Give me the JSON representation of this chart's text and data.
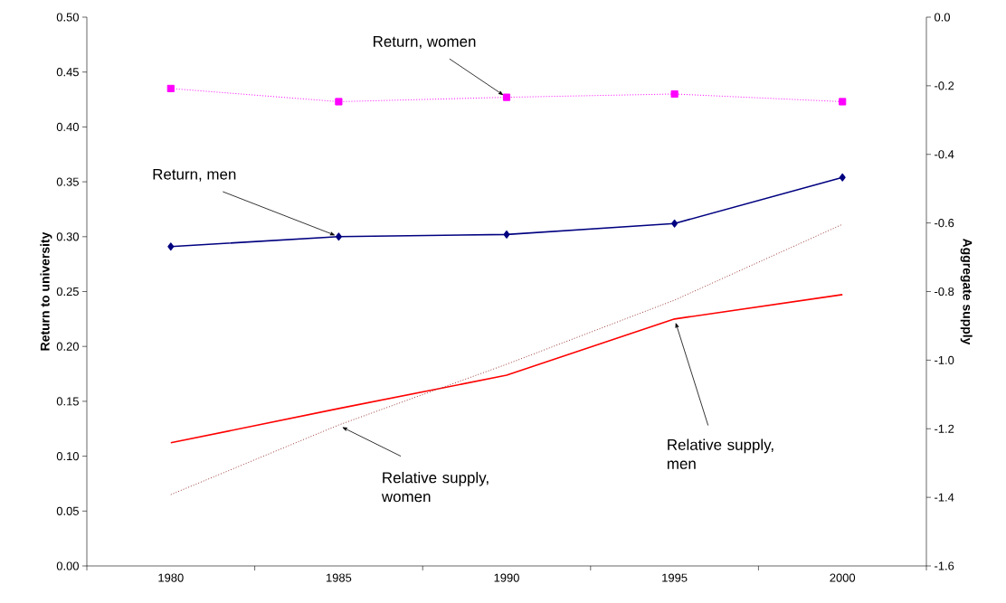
{
  "chart_data": {
    "type": "line",
    "categories": [
      "1980",
      "1985",
      "1990",
      "1995",
      "2000"
    ],
    "ylabel": "Return to university",
    "y2label": "Aggregate supply",
    "ylim": [
      0,
      0.5
    ],
    "yticks": [
      {
        "value": 0,
        "label": "0.00"
      },
      {
        "value": 0.05,
        "label": "0.05"
      },
      {
        "value": 0.1,
        "label": "0.10"
      },
      {
        "value": 0.15,
        "label": "0.15"
      },
      {
        "value": 0.2,
        "label": "0.20"
      },
      {
        "value": 0.25,
        "label": "0.25"
      },
      {
        "value": 0.3,
        "label": "0.30"
      },
      {
        "value": 0.35,
        "label": "0.35"
      },
      {
        "value": 0.4,
        "label": "0.40"
      },
      {
        "value": 0.45,
        "label": "0.45"
      },
      {
        "value": 0.5,
        "label": "0.50"
      }
    ],
    "y2lim": [
      -1.6,
      0
    ],
    "y2ticks": [
      {
        "value": -1.6,
        "label": "-1.6"
      },
      {
        "value": -1.4,
        "label": "-1.4"
      },
      {
        "value": -1.2,
        "label": "-1.2"
      },
      {
        "value": -1.0,
        "label": "-1.0"
      },
      {
        "value": -0.8,
        "label": "-0.8"
      },
      {
        "value": -0.6,
        "label": "-0.6"
      },
      {
        "value": -0.4,
        "label": "-0.4"
      },
      {
        "value": -0.2,
        "label": "-0.2"
      },
      {
        "value": 0,
        "label": "0.0"
      }
    ],
    "series": [
      {
        "color": "#000080",
        "marker": "diamond",
        "line_style": "solid",
        "values": [
          0.291,
          0.3,
          0.302,
          0.312,
          0.354
        ]
      },
      {
        "color": "#ff00ff",
        "marker": "square",
        "line_style": "dotted",
        "values": [
          0.435,
          0.423,
          0.427,
          0.43,
          0.423
        ]
      },
      {
        "color": "#ff0000",
        "marker": "none",
        "line_style": "solid",
        "axis": "y2",
        "values": [
          -1.241,
          -1.141,
          -1.044,
          -0.88,
          -0.809
        ]
      },
      {
        "color": "#993333",
        "marker": "none",
        "line_style": "dotted",
        "axis": "y2",
        "values": [
          -1.392,
          -1.189,
          -1.012,
          -0.825,
          -0.604
        ]
      }
    ],
    "annotations": [
      {
        "text": "Return, women",
        "x": "1990",
        "y": 0.427
      },
      {
        "text": "Return, men",
        "x": "1985",
        "y": 0.3
      },
      {
        "text": "Relative supply, men",
        "x": "1995",
        "y": 0.225
      },
      {
        "text": "Relative supply, women",
        "x": "1985",
        "y": 0.128
      }
    ]
  }
}
